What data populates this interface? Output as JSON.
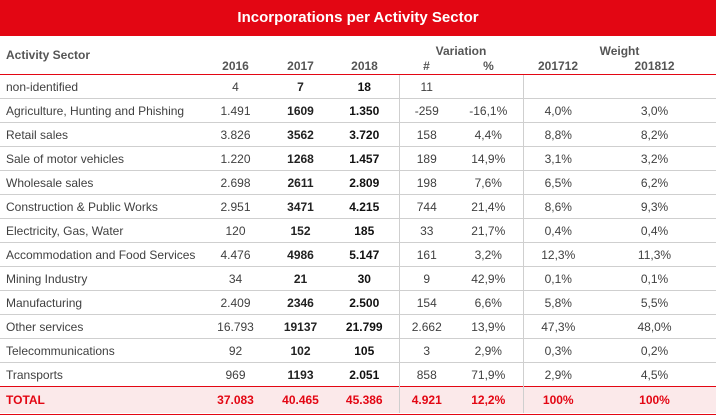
{
  "title": "Incorporations per Activity Sector",
  "headers": {
    "sector": "Activity Sector",
    "variation": "Variation",
    "weight": "Weight",
    "y2016": "2016",
    "y2017": "2017",
    "y2018": "2018",
    "var_abs": "#",
    "var_pct": "%",
    "w1": "201712",
    "w2": "201812"
  },
  "rows": [
    {
      "sector": "non-identified",
      "y2016": "4",
      "y2017": "7",
      "y2018": "18",
      "var_abs": "11",
      "var_pct": "",
      "w1": "",
      "w2": ""
    },
    {
      "sector": "Agriculture, Hunting and Phishing",
      "y2016": "1.491",
      "y2017": "1609",
      "y2018": "1.350",
      "var_abs": "-259",
      "var_pct": "-16,1%",
      "w1": "4,0%",
      "w2": "3,0%"
    },
    {
      "sector": "Retail sales",
      "y2016": "3.826",
      "y2017": "3562",
      "y2018": "3.720",
      "var_abs": "158",
      "var_pct": "4,4%",
      "w1": "8,8%",
      "w2": "8,2%"
    },
    {
      "sector": "Sale of motor vehicles",
      "y2016": "1.220",
      "y2017": "1268",
      "y2018": "1.457",
      "var_abs": "189",
      "var_pct": "14,9%",
      "w1": "3,1%",
      "w2": "3,2%"
    },
    {
      "sector": "Wholesale sales",
      "y2016": "2.698",
      "y2017": "2611",
      "y2018": "2.809",
      "var_abs": "198",
      "var_pct": "7,6%",
      "w1": "6,5%",
      "w2": "6,2%"
    },
    {
      "sector": "Construction & Public Works",
      "y2016": "2.951",
      "y2017": "3471",
      "y2018": "4.215",
      "var_abs": "744",
      "var_pct": "21,4%",
      "w1": "8,6%",
      "w2": "9,3%"
    },
    {
      "sector": "Electricity, Gas, Water",
      "y2016": "120",
      "y2017": "152",
      "y2018": "185",
      "var_abs": "33",
      "var_pct": "21,7%",
      "w1": "0,4%",
      "w2": "0,4%"
    },
    {
      "sector": "Accommodation and Food Services",
      "y2016": "4.476",
      "y2017": "4986",
      "y2018": "5.147",
      "var_abs": "161",
      "var_pct": "3,2%",
      "w1": "12,3%",
      "w2": "11,3%"
    },
    {
      "sector": "Mining Industry",
      "y2016": "34",
      "y2017": "21",
      "y2018": "30",
      "var_abs": "9",
      "var_pct": "42,9%",
      "w1": "0,1%",
      "w2": "0,1%"
    },
    {
      "sector": "Manufacturing",
      "y2016": "2.409",
      "y2017": "2346",
      "y2018": "2.500",
      "var_abs": "154",
      "var_pct": "6,6%",
      "w1": "5,8%",
      "w2": "5,5%"
    },
    {
      "sector": "Other services",
      "y2016": "16.793",
      "y2017": "19137",
      "y2018": "21.799",
      "var_abs": "2.662",
      "var_pct": "13,9%",
      "w1": "47,3%",
      "w2": "48,0%"
    },
    {
      "sector": "Telecommunications",
      "y2016": "92",
      "y2017": "102",
      "y2018": "105",
      "var_abs": "3",
      "var_pct": "2,9%",
      "w1": "0,3%",
      "w2": "0,2%"
    },
    {
      "sector": "Transports",
      "y2016": "969",
      "y2017": "1193",
      "y2018": "2.051",
      "var_abs": "858",
      "var_pct": "71,9%",
      "w1": "2,9%",
      "w2": "4,5%"
    }
  ],
  "total": {
    "sector": "TOTAL",
    "y2016": "37.083",
    "y2017": "40.465",
    "y2018": "45.386",
    "var_abs": "4.921",
    "var_pct": "12,2%",
    "w1": "100%",
    "w2": "100%"
  },
  "colors": {
    "accent": "#e30613",
    "total_bg": "#fbe9ea",
    "grid": "#cfcfcf"
  },
  "chart_data": {
    "type": "table",
    "title": "Incorporations per Activity Sector",
    "columns": [
      "Activity Sector",
      "2016",
      "2017",
      "2018",
      "#",
      "%",
      "201712",
      "201812"
    ],
    "column_groups": [
      {
        "name": "Variation",
        "columns": [
          "#",
          "%"
        ]
      },
      {
        "name": "Weight",
        "columns": [
          "201712",
          "201812"
        ]
      }
    ]
  }
}
